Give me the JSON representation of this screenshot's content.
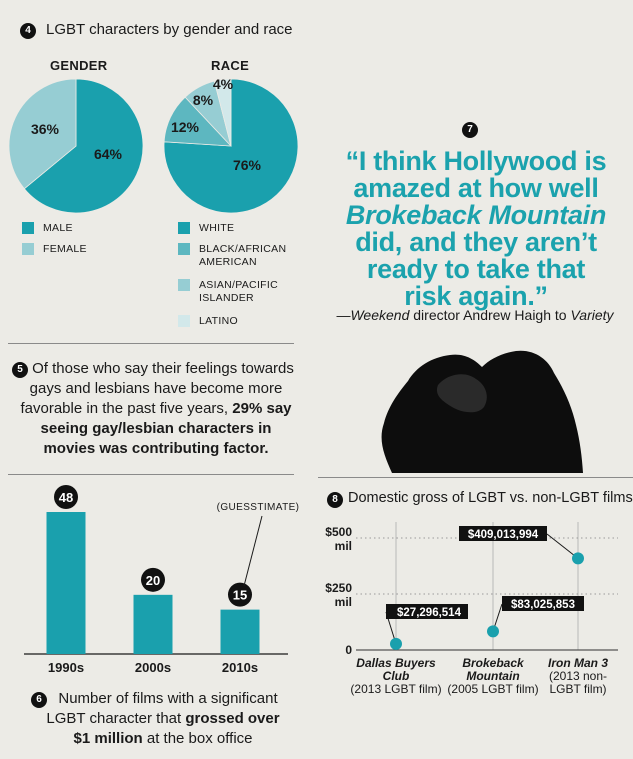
{
  "colors": {
    "teal_dark": "#1aa0ad",
    "teal_mid": "#5db7c0",
    "teal_light": "#96cdd3",
    "teal_pale": "#d2e8ea",
    "background": "#ecebe6"
  },
  "section4": {
    "number": "4",
    "title": "LGBT characters by gender and race",
    "gender_heading": "GENDER",
    "race_heading": "RACE",
    "gender_legend": [
      "MALE",
      "FEMALE"
    ],
    "race_legend": [
      "WHITE",
      "BLACK/AFRICAN AMERICAN",
      "ASIAN/PACIFIC ISLANDER",
      "LATINO"
    ]
  },
  "section5": {
    "number": "5",
    "text_plain": "Of those who say their feelings towards gays and lesbians have become more favorable in the past five years,",
    "text_bold": "29% say seeing gay/lesbian characters in movies was contributing factor."
  },
  "section6": {
    "number": "6",
    "caption_plain": "Number of films with a significant LGBT character that",
    "caption_bold": "grossed over $1 million",
    "caption_end": "at the box office",
    "annotation": "(GUESSTIMATE)"
  },
  "section7": {
    "number": "7",
    "quote_lines": [
      "“I think Hollywood is",
      "amazed at how well"
    ],
    "quote_italic": "Brokeback Mountain",
    "quote_lines_after": [
      "did, and they aren’t",
      "ready to take that",
      "risk again.”"
    ],
    "attr_prefix": "—",
    "attr_italic1": "Weekend",
    "attr_mid": " director Andrew Haigh to ",
    "attr_italic2": "Variety"
  },
  "section8": {
    "number": "8",
    "title": "Domestic gross of LGBT vs. non-LGBT films"
  },
  "chart_data": [
    {
      "type": "pie",
      "title": "GENDER",
      "labels": [
        "MALE",
        "FEMALE"
      ],
      "values": [
        64,
        36
      ],
      "value_labels": [
        "64%",
        "36%"
      ],
      "colors": [
        "#1aa0ad",
        "#96cdd3"
      ]
    },
    {
      "type": "pie",
      "title": "RACE",
      "labels": [
        "WHITE",
        "BLACK/AFRICAN AMERICAN",
        "ASIAN/PACIFIC ISLANDER",
        "LATINO"
      ],
      "values": [
        76,
        12,
        8,
        4
      ],
      "value_labels": [
        "76%",
        "12%",
        "8%",
        "4%"
      ],
      "colors": [
        "#1aa0ad",
        "#5db7c0",
        "#96cdd3",
        "#d2e8ea"
      ]
    },
    {
      "type": "bar",
      "categories": [
        "1990s",
        "2000s",
        "2010s"
      ],
      "values": [
        48,
        20,
        15
      ],
      "value_labels": [
        "48",
        "20",
        "15"
      ],
      "ylim": [
        0,
        48
      ]
    },
    {
      "type": "scatter",
      "y_ticks": [
        {
          "value": 500000000,
          "label": "$500",
          "unit": "mil"
        },
        {
          "value": 250000000,
          "label": "$250",
          "unit": "mil"
        },
        {
          "value": 0,
          "label": "0",
          "unit": ""
        }
      ],
      "ylim": [
        0,
        500000000
      ],
      "points": [
        {
          "name": "Dallas Buyers Club",
          "subtitle": "(2013 LGBT film)",
          "value": 27296514,
          "label": "$27,296,514"
        },
        {
          "name": "Brokeback Mountain",
          "subtitle": "(2005 LGBT film)",
          "value": 83025853,
          "label": "$83,025,853"
        },
        {
          "name": "Iron Man 3",
          "subtitle": "(2013 non-LGBT film)",
          "value": 409013994,
          "label": "$409,013,994"
        }
      ]
    }
  ]
}
